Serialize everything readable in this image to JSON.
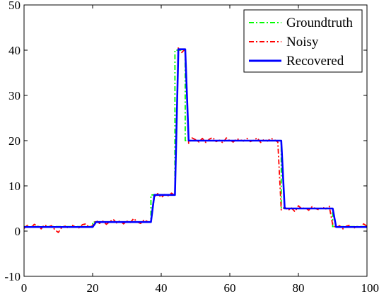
{
  "chart_data": {
    "type": "line",
    "title": "",
    "xlabel": "",
    "ylabel": "",
    "xlim": [
      0,
      100
    ],
    "ylim": [
      -10,
      50
    ],
    "xticks": [
      0,
      20,
      40,
      60,
      80,
      100
    ],
    "yticks": [
      -10,
      0,
      10,
      20,
      30,
      40,
      50
    ],
    "xtick_labels": [
      "0",
      "20",
      "40",
      "60",
      "80",
      "100"
    ],
    "ytick_labels": [
      "-10",
      "0",
      "10",
      "20",
      "30",
      "40",
      "50"
    ],
    "grid": false,
    "legend_position": "top-right",
    "series": [
      {
        "name": "Groundtruth",
        "color": "#00ff00",
        "style": "dash-dot",
        "x": [
          0,
          20,
          20,
          37,
          37,
          44,
          44,
          47,
          47,
          75,
          75,
          90,
          90,
          100
        ],
        "y": [
          1,
          1,
          2,
          2,
          8,
          8,
          40,
          40,
          20,
          20,
          5,
          5,
          1,
          1
        ]
      },
      {
        "name": "Noisy",
        "color": "#ff0000",
        "style": "dash-dot",
        "x": [
          0,
          1,
          2,
          3,
          4,
          5,
          6,
          7,
          8,
          9,
          10,
          11,
          12,
          13,
          14,
          15,
          16,
          17,
          18,
          19,
          20,
          21,
          22,
          23,
          24,
          25,
          26,
          27,
          28,
          29,
          30,
          31,
          32,
          33,
          34,
          35,
          36,
          37,
          38,
          39,
          40,
          41,
          42,
          43,
          44,
          45,
          46,
          47,
          48,
          49,
          50,
          51,
          52,
          53,
          54,
          55,
          56,
          57,
          58,
          59,
          60,
          61,
          62,
          63,
          64,
          65,
          66,
          67,
          68,
          69,
          70,
          71,
          72,
          73,
          74,
          75,
          76,
          77,
          78,
          79,
          80,
          81,
          82,
          83,
          84,
          85,
          86,
          87,
          88,
          89,
          90,
          91,
          92,
          93,
          94,
          95,
          96,
          97,
          98,
          99,
          100
        ],
        "y": [
          0.6,
          1.3,
          0.7,
          1.5,
          1.1,
          0.5,
          1.4,
          0.9,
          1.2,
          0.3,
          -0.3,
          0.8,
          1.1,
          0.6,
          1.3,
          0.9,
          0.7,
          1.4,
          1.6,
          0.8,
          1.2,
          2.4,
          1.7,
          2.2,
          1.5,
          2.1,
          2.6,
          1.8,
          2.3,
          1.6,
          2.2,
          1.9,
          2.8,
          2.0,
          1.7,
          2.5,
          2.1,
          1.9,
          7.6,
          8.3,
          7.4,
          8.1,
          7.8,
          8.4,
          7.9,
          40.6,
          39.5,
          40.3,
          19.4,
          20.6,
          20.2,
          19.7,
          20.5,
          19.6,
          20.3,
          20.7,
          19.8,
          20.1,
          19.5,
          20.6,
          20.0,
          19.7,
          20.4,
          20.2,
          19.9,
          20.5,
          19.8,
          20.1,
          20.6,
          19.6,
          20.3,
          19.9,
          20.5,
          20.2,
          19.7,
          4.7,
          5.3,
          4.6,
          5.1,
          4.3,
          5.6,
          4.9,
          5.2,
          4.6,
          5.4,
          5.0,
          4.7,
          5.3,
          4.9,
          5.5,
          1.4,
          0.7,
          1.2,
          0.5,
          1.1,
          1.3,
          0.6,
          1.0,
          0.8,
          1.6,
          1.1
        ]
      },
      {
        "name": "Recovered",
        "color": "#0000ff",
        "style": "solid",
        "x": [
          0,
          20,
          21,
          37,
          38,
          44,
          45,
          47,
          48,
          75,
          76,
          90,
          91,
          100
        ],
        "y": [
          0.9,
          0.9,
          2.0,
          2.0,
          8.0,
          8.0,
          40.2,
          40.2,
          20.0,
          20.0,
          5.0,
          5.0,
          0.9,
          0.9
        ]
      }
    ]
  }
}
